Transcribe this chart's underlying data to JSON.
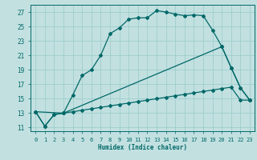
{
  "xlabel": "Humidex (Indice chaleur)",
  "bg_color": "#c2e0e0",
  "grid_color": "#9fcece",
  "line_color": "#006868",
  "xlim": [
    -0.5,
    23.5
  ],
  "ylim": [
    10.5,
    28.0
  ],
  "xticks": [
    0,
    1,
    2,
    3,
    4,
    5,
    6,
    7,
    8,
    9,
    10,
    11,
    12,
    13,
    14,
    15,
    16,
    17,
    18,
    19,
    20,
    21,
    22,
    23
  ],
  "yticks": [
    11,
    13,
    15,
    17,
    19,
    21,
    23,
    25,
    27
  ],
  "series1_x": [
    0,
    1,
    2,
    3,
    4,
    5,
    6,
    7,
    8,
    9,
    10,
    11,
    12,
    13,
    14,
    15,
    16,
    17,
    18,
    19,
    20,
    21,
    22,
    23
  ],
  "series1_y": [
    13.2,
    11.2,
    12.8,
    13.0,
    15.5,
    18.2,
    19.0,
    21.0,
    24.0,
    24.8,
    26.0,
    26.2,
    26.2,
    27.2,
    27.0,
    26.7,
    26.5,
    26.6,
    26.5,
    24.5,
    22.2,
    19.3,
    16.5,
    14.8
  ],
  "series2_x": [
    0,
    1,
    2,
    3,
    4,
    5,
    6,
    7,
    8,
    9,
    10,
    11,
    12,
    13,
    14,
    15,
    16,
    17,
    18,
    19,
    20,
    21,
    22,
    23
  ],
  "series2_y": [
    13.2,
    11.2,
    12.8,
    13.0,
    13.2,
    13.4,
    13.6,
    13.8,
    14.0,
    14.2,
    14.4,
    14.6,
    14.8,
    15.0,
    15.2,
    15.4,
    15.6,
    15.8,
    16.0,
    16.2,
    16.4,
    16.6,
    14.8,
    14.8
  ],
  "series3_x": [
    0,
    3,
    20,
    21,
    22,
    23
  ],
  "series3_y": [
    13.2,
    13.0,
    22.2,
    19.3,
    16.5,
    14.8
  ]
}
